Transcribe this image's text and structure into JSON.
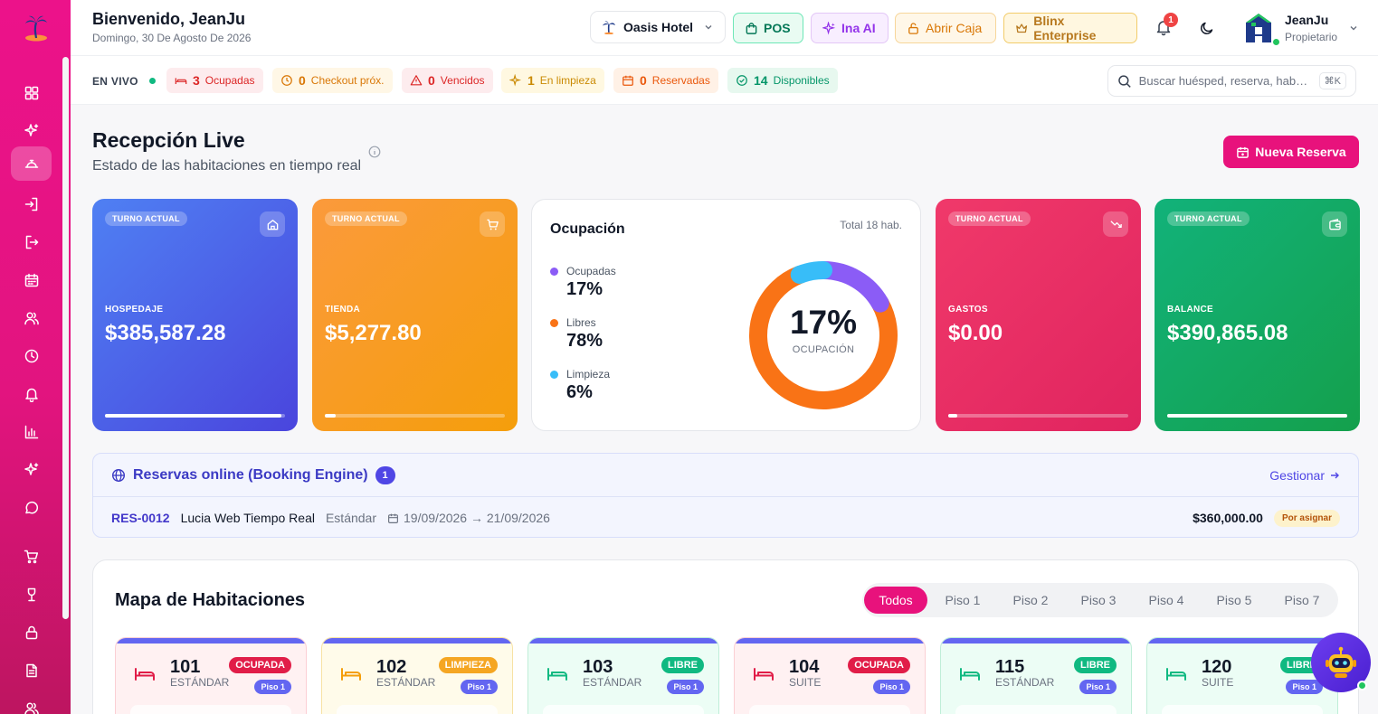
{
  "sidebar": {
    "logo_icon": "palm-island-icon",
    "items": [
      {
        "id": "dashboard",
        "icon": "grid-icon",
        "active": false
      },
      {
        "id": "ai",
        "icon": "sparkles-icon",
        "active": false
      },
      {
        "id": "reception",
        "icon": "concierge-bell-icon",
        "active": true
      },
      {
        "id": "checkin",
        "icon": "login-icon",
        "active": false
      },
      {
        "id": "checkout",
        "icon": "logout-icon",
        "active": false
      },
      {
        "id": "calendar",
        "icon": "calendar-icon",
        "active": false
      },
      {
        "id": "guests",
        "icon": "users-icon",
        "active": false
      },
      {
        "id": "history",
        "icon": "clock-icon",
        "active": false
      },
      {
        "id": "notifications",
        "icon": "bell-icon",
        "active": false
      },
      {
        "id": "reports",
        "icon": "bar-chart-icon",
        "active": false
      },
      {
        "id": "cleaning",
        "icon": "sparkles-icon",
        "active": false
      },
      {
        "id": "chat",
        "icon": "chat-icon",
        "active": false
      },
      {
        "id": "store",
        "icon": "cart-icon",
        "active": false
      },
      {
        "id": "bar",
        "icon": "wine-glass-icon",
        "active": false
      },
      {
        "id": "cash",
        "icon": "lock-icon",
        "active": false
      },
      {
        "id": "documents",
        "icon": "document-icon",
        "active": false
      },
      {
        "id": "staff",
        "icon": "users-icon",
        "active": false
      }
    ]
  },
  "header": {
    "greeting": "Bienvenido, JeanJu",
    "date": "Domingo, 30 De Agosto De 2026",
    "hotel": "Oasis Hotel",
    "pos_label": "POS",
    "ina_label": "Ina AI",
    "caja_label": "Abrir Caja",
    "enterprise_label": "Blinx Enterprise",
    "notification_count": "1",
    "user_name": "JeanJu",
    "user_role": "Propietario"
  },
  "status": {
    "live_label": "EN VIVO",
    "chips": [
      {
        "count": "3",
        "label": "Ocupadas",
        "icon": "bed-icon"
      },
      {
        "count": "0",
        "label": "Checkout próx.",
        "icon": "clock-icon"
      },
      {
        "count": "0",
        "label": "Vencidos",
        "icon": "warning-icon"
      },
      {
        "count": "1",
        "label": "En limpieza",
        "icon": "sparkles-icon"
      },
      {
        "count": "0",
        "label": "Reservadas",
        "icon": "calendar-icon"
      },
      {
        "count": "14",
        "label": "Disponibles",
        "icon": "check-circle-icon"
      }
    ],
    "search_placeholder": "Buscar huésped, reserva, hab…",
    "search_shortcut": "⌘K"
  },
  "page": {
    "title": "Recepción Live",
    "subtitle": "Estado de las habitaciones en tiempo real",
    "new_booking_label": "Nueva Reserva"
  },
  "kpis": [
    {
      "tag": "TURNO ACTUAL",
      "label": "HOSPEDAJE",
      "value": "$385,587.28",
      "icon": "home-icon",
      "progress": 0.98
    },
    {
      "tag": "TURNO ACTUAL",
      "label": "TIENDA",
      "value": "$5,277.80",
      "icon": "cart-icon",
      "progress": 0.06
    },
    {
      "tag": "TURNO ACTUAL",
      "label": "GASTOS",
      "value": "$0.00",
      "icon": "trending-down-icon",
      "progress": 0.05
    },
    {
      "tag": "TURNO ACTUAL",
      "label": "BALANCE",
      "value": "$390,865.08",
      "icon": "wallet-icon",
      "progress": 1.0
    }
  ],
  "occupancy": {
    "title": "Ocupación",
    "total_label": "Total 18 hab.",
    "center_value": "17%",
    "center_label": "OCUPACIÓN",
    "legend": [
      {
        "name": "Ocupadas",
        "pct": "17%",
        "value": 17,
        "color": "#8b5cf6"
      },
      {
        "name": "Libres",
        "pct": "78%",
        "value": 78,
        "color": "#f97316"
      },
      {
        "name": "Limpieza",
        "pct": "6%",
        "value": 6,
        "color": "#38bdf8"
      }
    ]
  },
  "booking_engine": {
    "title": "Reservas online (Booking Engine)",
    "count": "1",
    "manage_label": "Gestionar",
    "reservation": {
      "code": "RES-0012",
      "guest": "Lucia Web Tiempo Real",
      "room_type": "Estándar",
      "dates": "19/09/2026 → 21/09/2026",
      "amount": "$360,000.00",
      "status": "Por asignar"
    }
  },
  "room_map": {
    "title": "Mapa de Habitaciones",
    "filters": [
      "Todos",
      "Piso 1",
      "Piso 2",
      "Piso 3",
      "Piso 4",
      "Piso 5",
      "Piso 7"
    ],
    "active_filter": "Todos",
    "rooms": [
      {
        "number": "101",
        "type": "ESTÁNDAR",
        "status": "OCUPADA",
        "floor": "Piso 1",
        "status_color": "#e11d48",
        "icon_color": "#e11d48",
        "theme": "red"
      },
      {
        "number": "102",
        "type": "ESTÁNDAR",
        "status": "LIMPIEZA",
        "floor": "Piso 1",
        "status_color": "#f5a623",
        "icon_color": "#f59e0b",
        "theme": "yellow"
      },
      {
        "number": "103",
        "type": "ESTÁNDAR",
        "status": "LIBRE",
        "floor": "Piso 1",
        "status_color": "#10b981",
        "icon_color": "#10b981",
        "theme": "green"
      },
      {
        "number": "104",
        "type": "SUITE",
        "status": "OCUPADA",
        "floor": "Piso 1",
        "status_color": "#e11d48",
        "icon_color": "#e11d48",
        "theme": "red"
      },
      {
        "number": "115",
        "type": "ESTÁNDAR",
        "status": "LIBRE",
        "floor": "Piso 1",
        "status_color": "#10b981",
        "icon_color": "#10b981",
        "theme": "green"
      },
      {
        "number": "120",
        "type": "SUITE",
        "status": "LIBRE",
        "floor": "Piso 1",
        "status_color": "#10b981",
        "icon_color": "#10b981",
        "theme": "green"
      }
    ]
  },
  "assistant_icon": "robot-assistant-icon"
}
